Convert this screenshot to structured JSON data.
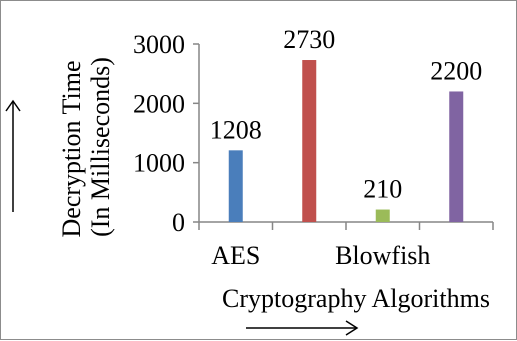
{
  "chart_data": {
    "type": "bar",
    "title": "",
    "xlabel": "Cryptography Algorithms",
    "ylabel_line1": "Decryption Time",
    "ylabel_line2": "(In Milliseconds)",
    "categories": [
      "AES",
      "",
      "Blowfish",
      ""
    ],
    "values": [
      1208,
      2730,
      210,
      2200
    ],
    "data_labels": [
      "1208",
      "2730",
      "210",
      "2200"
    ],
    "colors": [
      "#4a7ebb",
      "#c0504d",
      "#9bbb59",
      "#8064a2"
    ],
    "ylim": [
      0,
      3000
    ],
    "yticks": [
      0,
      1000,
      2000,
      3000
    ],
    "ytick_labels": [
      "0",
      "1000",
      "2000",
      "3000"
    ],
    "grid": false,
    "legend": "none"
  }
}
